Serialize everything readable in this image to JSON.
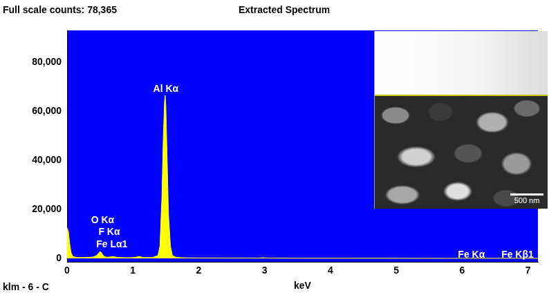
{
  "chart_data": {
    "type": "line",
    "title": "Extracted Spectrum",
    "full_scale_label": "Full scale counts: 78,365",
    "sample_label": "klm - 6 - C",
    "x_label": "keV",
    "color": "#ffff00",
    "grid": false,
    "x": [
      0,
      0.02,
      0.04,
      0.06,
      0.08,
      0.1,
      0.15,
      0.2,
      0.3,
      0.4,
      0.45,
      0.48,
      0.5,
      0.52,
      0.54,
      0.56,
      0.6,
      0.65,
      0.68,
      0.7,
      0.72,
      0.76,
      0.8,
      0.9,
      1.0,
      1.05,
      1.08,
      1.1,
      1.12,
      1.15,
      1.2,
      1.3,
      1.38,
      1.41,
      1.44,
      1.46,
      1.48,
      1.49,
      1.5,
      1.52,
      1.54,
      1.57,
      1.6,
      1.65,
      1.7,
      1.8,
      2.0,
      2.5,
      2.9,
      2.97,
      3.05,
      3.5,
      4,
      5,
      6,
      6.4,
      7,
      7.15
    ],
    "values": [
      12500,
      11000,
      6000,
      2500,
      1200,
      700,
      400,
      350,
      400,
      600,
      1200,
      2200,
      2800,
      2500,
      1600,
      900,
      500,
      550,
      700,
      750,
      650,
      450,
      350,
      300,
      350,
      500,
      700,
      800,
      650,
      400,
      350,
      400,
      1200,
      5000,
      25000,
      48000,
      64000,
      66500,
      62000,
      40000,
      18000,
      5000,
      1200,
      500,
      350,
      250,
      200,
      150,
      130,
      300,
      130,
      100,
      80,
      60,
      50,
      60,
      40,
      40
    ],
    "xlim": [
      0,
      7.15
    ],
    "xticks": [
      0,
      1,
      2,
      3,
      4,
      5,
      6,
      7
    ],
    "ylim": [
      -1500,
      93000
    ],
    "yticks": [
      0,
      {
        "value": 20000,
        "label": "20,000"
      },
      {
        "value": 40000,
        "label": "40,000"
      },
      {
        "value": 60000,
        "label": "60,000"
      },
      {
        "value": 80000,
        "label": "80,000"
      }
    ],
    "annotations": [
      {
        "text": "Al Kα",
        "x": 1.5,
        "y": 69000
      },
      {
        "text": "O Kα",
        "x": 0.54,
        "y": 15400
      },
      {
        "text": "F Kα",
        "x": 0.64,
        "y": 10600
      },
      {
        "text": "Fe Lα1",
        "x": 0.68,
        "y": 5700
      },
      {
        "text": "Fe Kα",
        "x": 6.14,
        "y": 1400
      },
      {
        "text": "Fe Kβ1",
        "x": 6.84,
        "y": 1400
      }
    ],
    "inset": {
      "scale_bar": "500 nm"
    }
  }
}
